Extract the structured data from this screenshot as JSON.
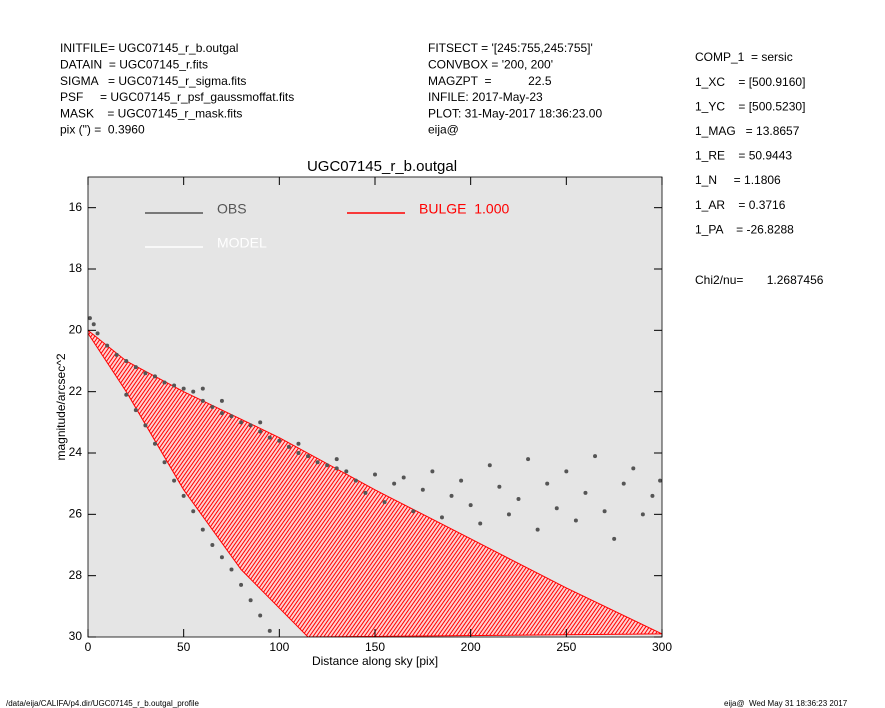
{
  "header": {
    "left": [
      "INITFILE= UGC07145_r_b.outgal",
      "DATAIN  = UGC07145_r.fits",
      "SIGMA   = UGC07145_r_sigma.fits",
      "PSF     = UGC07145_r_psf_gaussmoffat.fits",
      "MASK    = UGC07145_r_mask.fits",
      "pix (\") =  0.3960"
    ],
    "middle": [
      "FITSECT = '[245:755,245:755]'",
      "CONVBOX = '200, 200'",
      "MAGZPT  =           22.5",
      "INFILE: 2017-May-23",
      "PLOT: 31-May-2017 18:36:23.00",
      "eija@"
    ],
    "right": [
      "COMP_1  = sersic",
      "1_XC    = [500.9160]",
      "1_YC    = [500.5230]",
      "1_MAG   = 13.8657",
      "1_RE    = 50.9443",
      "1_N     = 1.1806",
      "1_AR    = 0.3716",
      "1_PA    = -26.8288"
    ],
    "chi2": "Chi2/nu=       1.2687456"
  },
  "footer": {
    "left": "/data/eija/CALIFA/p4.dir/UGC07145_r_b.outgal_profile",
    "right": "eija@  Wed May 31 18:36:23 2017"
  },
  "chart_data": {
    "type": "scatter",
    "title": "UGC07145_r_b.outgal",
    "xlabel": "Distance along sky [pix]",
    "ylabel": "magnitude/arcsec^2",
    "xlim": [
      0,
      300
    ],
    "xticks": [
      0,
      50,
      100,
      150,
      200,
      250,
      300
    ],
    "ylim": [
      15,
      30
    ],
    "yticks": [
      16,
      18,
      20,
      22,
      24,
      26,
      28,
      30
    ],
    "y_inverted": true,
    "background": "#e5e5e5",
    "series": [
      {
        "name": "OBS",
        "color": "#555555",
        "x": [
          1,
          3,
          5,
          10,
          15,
          20,
          25,
          30,
          35,
          40,
          45,
          50,
          55,
          60,
          65,
          70,
          75,
          80,
          85,
          90,
          95,
          100,
          105,
          110,
          115,
          120,
          125,
          130,
          135,
          140,
          145,
          150,
          155,
          160,
          165,
          170,
          175,
          180,
          185,
          190,
          195,
          200,
          205,
          210,
          215,
          220,
          225,
          230,
          235,
          240,
          245,
          250,
          255,
          260,
          265,
          270,
          275,
          280,
          285,
          290,
          295,
          299,
          20,
          25,
          30,
          35,
          40,
          45,
          50,
          55,
          60,
          65,
          70,
          75,
          80,
          85,
          90,
          95,
          60,
          70,
          90,
          110,
          130
        ],
        "values": [
          19.6,
          19.8,
          20.1,
          20.5,
          20.8,
          21.0,
          21.2,
          21.4,
          21.5,
          21.7,
          21.8,
          21.9,
          22.0,
          22.3,
          22.5,
          22.7,
          22.8,
          23.0,
          23.1,
          23.3,
          23.5,
          23.6,
          23.8,
          24.0,
          24.1,
          24.3,
          24.4,
          24.5,
          24.6,
          24.9,
          25.3,
          24.7,
          25.6,
          25.0,
          24.8,
          25.9,
          25.2,
          24.6,
          26.1,
          25.4,
          24.9,
          25.7,
          26.3,
          24.4,
          25.1,
          26.0,
          25.5,
          24.2,
          26.5,
          25.0,
          25.8,
          24.6,
          26.2,
          25.3,
          24.1,
          25.9,
          26.8,
          25.0,
          24.5,
          26.0,
          25.4,
          24.9,
          22.1,
          22.6,
          23.1,
          23.7,
          24.3,
          24.9,
          25.4,
          25.9,
          26.5,
          27.0,
          27.4,
          27.8,
          28.3,
          28.8,
          29.3,
          29.8,
          21.9,
          22.3,
          23.0,
          23.7,
          24.2
        ]
      },
      {
        "name": "MODEL",
        "color": "#ffffff"
      },
      {
        "name": "BULGE  1.000",
        "color": "#ff0000",
        "x": [
          0,
          20,
          50,
          100,
          150,
          200,
          250,
          300,
          115,
          80,
          50,
          20,
          0
        ],
        "values": [
          20.0,
          21.0,
          22.0,
          23.5,
          25.2,
          26.8,
          28.4,
          29.9,
          30,
          27.8,
          25.2,
          22.0,
          20.1
        ]
      }
    ]
  }
}
